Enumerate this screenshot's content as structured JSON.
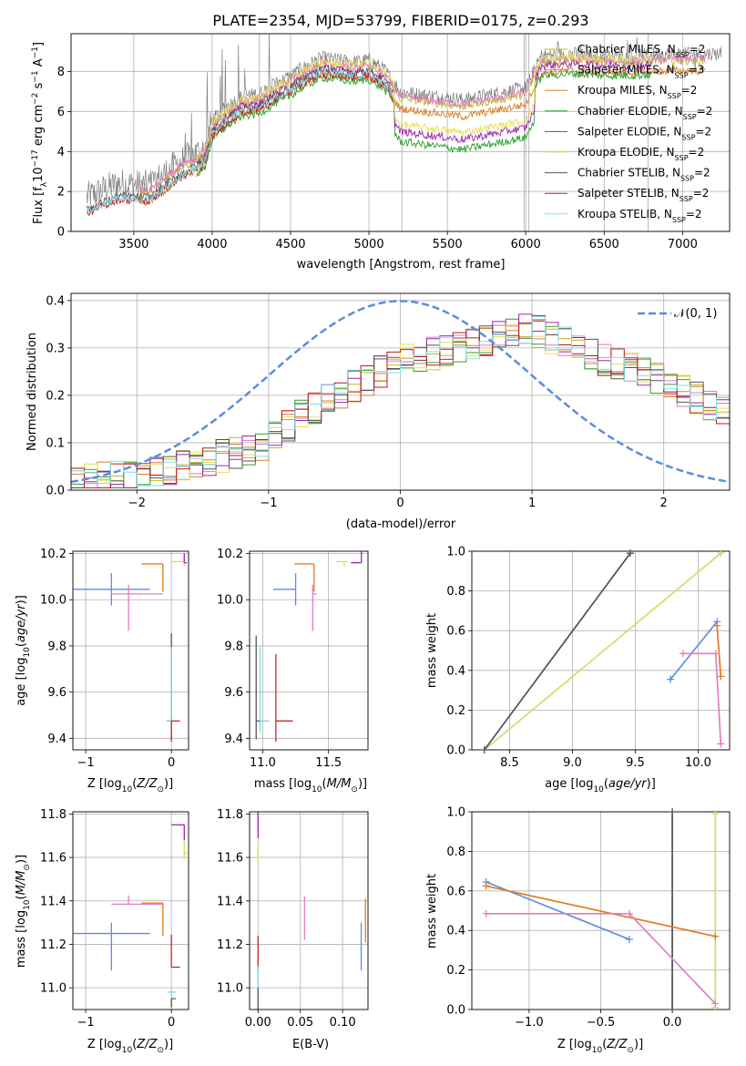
{
  "figure": {
    "title": "PLATE=2354, MJD=53799, FIBERID=0175, z=0.293"
  },
  "colors": {
    "Chabrier MILES": "#bcbd22",
    "Salpeter MILES": "#e377c2",
    "Kroupa MILES": "#d6812b",
    "Chabrier ELODIE": "#2ca02c",
    "Salpeter ELODIE": "#9c27b0",
    "Kroupa ELODIE": "#e8e05a",
    "Chabrier STELIB": "#555555",
    "Salpeter STELIB": "#b71c1c",
    "Kroupa STELIB": "#80deea",
    "data": "#808080",
    "gaussian": "#5b8ddb",
    "blue": "#5b8ddb",
    "orange": "#e07b20",
    "pink": "#e07fbf",
    "red": "#c62828",
    "grey": "#555555",
    "cyan": "#7fd6e0",
    "lime": "#c8e06e",
    "purple": "#9c27b0"
  },
  "chart_data": [
    {
      "id": "spectrum",
      "type": "line",
      "xlabel": "wavelength [Angstrom, rest frame]",
      "ylabel": "Flux [fλ10⁻¹⁷ erg cm⁻² s⁻¹ A⁻¹]",
      "xlim": [
        3100,
        7300
      ],
      "ylim": [
        0,
        9.9
      ],
      "xticks": [
        "3500",
        "4000",
        "4500",
        "5000",
        "5500",
        "6000",
        "6500",
        "7000"
      ],
      "yticks": [
        "0",
        "2",
        "4",
        "6",
        "8"
      ],
      "legend_position": "top-right",
      "legend": [
        "Chabrier MILES, N_SSP=2",
        "Salpeter MILES, N_SSP=3",
        "Kroupa MILES, N_SSP=2",
        "Chabrier ELODIE, N_SSP=2",
        "Salpeter ELODIE, N_SSP=2",
        "Kroupa ELODIE, N_SSP=2",
        "Chabrier STELIB, N_SSP=2",
        "Salpeter STELIB, N_SSP=2",
        "Kroupa STELIB, N_SSP=2"
      ],
      "legend_labels": {
        "Chabrier MILES": "Chabrier MILES, N",
        "Salpeter MILES": "Salpeter MILES, N",
        "Kroupa MILES": "Kroupa MILES, N",
        "Chabrier ELODIE": "Chabrier ELODIE, N",
        "Salpeter ELODIE": "Salpeter ELODIE, N",
        "Kroupa ELODIE": "Kroupa ELODIE, N",
        "Chabrier STELIB": "Chabrier STELIB, N",
        "Salpeter STELIB": "Salpeter STELIB, N",
        "Kroupa STELIB": "Kroupa STELIB, N"
      },
      "legend_nssp": {
        "Chabrier MILES": "2",
        "Salpeter MILES": "3",
        "Kroupa MILES": "2",
        "Chabrier ELODIE": "2",
        "Salpeter ELODIE": "2",
        "Kroupa ELODIE": "2",
        "Chabrier STELIB": "2",
        "Salpeter STELIB": "2",
        "Kroupa STELIB": "2"
      },
      "continuum": {
        "x": [
          3200,
          3400,
          3600,
          3800,
          3950,
          4000,
          4100,
          4200,
          4300,
          4400,
          4500,
          4600,
          4700,
          4800,
          4900,
          5000,
          5100,
          5200,
          5400,
          5600,
          5800,
          6000,
          6100,
          6300,
          6500,
          6700,
          6900,
          7100
        ],
        "y": [
          1.7,
          2.4,
          2.3,
          3.5,
          4.1,
          5.6,
          6.3,
          6.8,
          6.9,
          7.4,
          7.8,
          8.3,
          8.7,
          8.6,
          8.5,
          8.6,
          8.1,
          7.0,
          6.8,
          6.6,
          6.9,
          7.2,
          8.8,
          8.9,
          8.8,
          8.8,
          8.9,
          8.9
        ]
      },
      "model_x_ranges": {
        "MILES": [
          3540,
          7150
        ],
        "ELODIE": [
          3900,
          6800
        ],
        "STELIB": [
          3200,
          5150
        ]
      }
    },
    {
      "id": "residuals",
      "type": "histogram",
      "xlabel": "(data-model)/error",
      "ylabel": "Normed distribution",
      "xlim": [
        -2.5,
        2.5
      ],
      "ylim": [
        0,
        0.415
      ],
      "xticks": [
        "−2",
        "−1",
        "0",
        "1",
        "2"
      ],
      "yticks": [
        "0.0",
        "0.1",
        "0.2",
        "0.3",
        "0.4"
      ],
      "legend_position": "top-right",
      "gaussian_label": "𝒩(0, 1)",
      "bin_width": 0.1,
      "envelope": {
        "x": [
          -2.5,
          -2.0,
          -1.5,
          -1.0,
          -0.8,
          -0.5,
          -0.2,
          0.0,
          0.3,
          0.7,
          1.0,
          1.5,
          2.0,
          2.5
        ],
        "y": [
          0.02,
          0.03,
          0.06,
          0.1,
          0.15,
          0.2,
          0.24,
          0.28,
          0.29,
          0.32,
          0.34,
          0.28,
          0.23,
          0.16
        ]
      }
    },
    {
      "id": "age-vs-Z",
      "type": "errorbar",
      "xlabel": "Z [log10(Z/Z⊙)]",
      "ylabel": "age  [log10(age/yr)]",
      "xlim": [
        -1.15,
        0.2
      ],
      "ylim": [
        9.35,
        10.21
      ],
      "xticks": [
        "−1",
        "0"
      ],
      "yticks": [
        "9.4",
        "9.6",
        "9.8",
        "10.0",
        "10.2"
      ],
      "points": [
        {
          "c": "blue",
          "x": -0.7,
          "y": 10.045,
          "xe": [
            0.45,
            0.45
          ],
          "ye": [
            0.07,
            0.07
          ]
        },
        {
          "c": "pink",
          "x": -0.5,
          "y": 10.025,
          "xe": [
            0.2,
            0.4
          ],
          "ye": [
            0.16,
            0.04
          ]
        },
        {
          "c": "orange",
          "x": -0.1,
          "y": 10.155,
          "xe": [
            0.25,
            0.0
          ],
          "ye": [
            0.12,
            0.0
          ]
        },
        {
          "c": "lime",
          "x": 0.15,
          "y": 10.165,
          "xe": [
            0.15,
            0.0
          ],
          "ye": [
            0.02,
            0.01
          ]
        },
        {
          "c": "purple",
          "x": 0.15,
          "y": 10.16,
          "xe": [
            0.0,
            0.03
          ],
          "ye": [
            0.0,
            0.04
          ]
        },
        {
          "c": "grey",
          "x": 0.0,
          "y": 9.475,
          "xe": [
            0.05,
            0.0
          ],
          "ye": [
            0.08,
            0.38
          ]
        },
        {
          "c": "cyan",
          "x": 0.0,
          "y": 9.475,
          "xe": [
            0.06,
            0.02
          ],
          "ye": [
            0.05,
            0.32
          ]
        },
        {
          "c": "red",
          "x": 0.0,
          "y": 9.475,
          "xe": [
            0.0,
            0.1
          ],
          "ye": [
            0.09,
            0.0
          ]
        }
      ]
    },
    {
      "id": "age-vs-mass",
      "type": "errorbar",
      "xlabel": "mass [log10(M/M⊙)]",
      "ylabel": "",
      "xlim": [
        10.9,
        11.8
      ],
      "ylim": [
        9.35,
        10.21
      ],
      "xticks": [
        "11.0",
        "11.5"
      ],
      "yticks": [
        "9.4",
        "9.6",
        "9.8",
        "10.0",
        "10.2"
      ],
      "points": [
        {
          "c": "blue",
          "x": 11.25,
          "y": 10.045,
          "xe": [
            0.17,
            0.0
          ],
          "ye": [
            0.07,
            0.07
          ]
        },
        {
          "c": "pink",
          "x": 11.38,
          "y": 10.025,
          "xe": [
            0.0,
            0.03
          ],
          "ye": [
            0.16,
            0.04
          ]
        },
        {
          "c": "orange",
          "x": 11.39,
          "y": 10.155,
          "xe": [
            0.15,
            0.0
          ],
          "ye": [
            0.12,
            0.0
          ]
        },
        {
          "c": "lime",
          "x": 11.62,
          "y": 10.165,
          "xe": [
            0.06,
            0.03
          ],
          "ye": [
            0.02,
            0.0
          ]
        },
        {
          "c": "purple",
          "x": 11.75,
          "y": 10.16,
          "xe": [
            0.08,
            0.0
          ],
          "ye": [
            0.0,
            0.06
          ]
        },
        {
          "c": "grey",
          "x": 10.95,
          "y": 9.475,
          "xe": [
            0.0,
            0.05
          ],
          "ye": [
            0.08,
            0.37
          ]
        },
        {
          "c": "cyan",
          "x": 10.98,
          "y": 9.475,
          "xe": [
            0.0,
            0.07
          ],
          "ye": [
            0.05,
            0.32
          ]
        },
        {
          "c": "red",
          "x": 11.1,
          "y": 9.475,
          "xe": [
            0.0,
            0.13
          ],
          "ye": [
            0.09,
            0.29
          ]
        }
      ]
    },
    {
      "id": "weight-vs-age",
      "type": "line",
      "xlabel": "age  [log10(age/yr)]",
      "ylabel": "mass weight",
      "xlim": [
        8.2,
        10.25
      ],
      "ylim": [
        0.0,
        1.0
      ],
      "xticks": [
        "8.5",
        "9.0",
        "9.5",
        "10.0"
      ],
      "yticks": [
        "0.0",
        "0.2",
        "0.4",
        "0.6",
        "0.8",
        "1.0"
      ],
      "series": [
        {
          "c": "lime",
          "x": [
            8.3,
            10.18
          ],
          "y": [
            0.0,
            0.99
          ]
        },
        {
          "c": "cyan",
          "x": [
            8.3,
            9.46
          ],
          "y": [
            0.0,
            0.99
          ]
        },
        {
          "c": "grey",
          "x": [
            8.3,
            9.46
          ],
          "y": [
            0.0,
            0.99
          ]
        },
        {
          "c": "blue",
          "x": [
            9.78,
            10.15
          ],
          "y": [
            0.355,
            0.645
          ]
        },
        {
          "c": "pink",
          "x": [
            9.88,
            10.14,
            10.18
          ],
          "y": [
            0.485,
            0.485,
            0.03
          ]
        },
        {
          "c": "orange",
          "x": [
            10.15,
            10.18
          ],
          "y": [
            0.625,
            0.37
          ]
        }
      ]
    },
    {
      "id": "mass-vs-Z",
      "type": "errorbar",
      "xlabel": "Z [log10(Z/Z⊙)]",
      "ylabel": "mass [log10(M/M⊙)]",
      "xlim": [
        -1.15,
        0.2
      ],
      "ylim": [
        10.9,
        11.81
      ],
      "xticks": [
        "−1",
        "0"
      ],
      "yticks": [
        "11.0",
        "11.2",
        "11.4",
        "11.6",
        "11.8"
      ],
      "points": [
        {
          "c": "blue",
          "x": -0.7,
          "y": 11.25,
          "xe": [
            0.45,
            0.45
          ],
          "ye": [
            0.17,
            0.05
          ]
        },
        {
          "c": "pink",
          "x": -0.5,
          "y": 11.385,
          "xe": [
            0.2,
            0.4
          ],
          "ye": [
            0.0,
            0.04
          ]
        },
        {
          "c": "orange",
          "x": -0.1,
          "y": 11.39,
          "xe": [
            0.25,
            0.0
          ],
          "ye": [
            0.15,
            0.0
          ]
        },
        {
          "c": "purple",
          "x": 0.15,
          "y": 11.75,
          "xe": [
            0.15,
            0.0
          ],
          "ye": [
            0.08,
            0.0
          ]
        },
        {
          "c": "lime",
          "x": 0.15,
          "y": 11.62,
          "xe": [
            0.0,
            0.03
          ],
          "ye": [
            0.03,
            0.06
          ]
        },
        {
          "c": "red",
          "x": 0.0,
          "y": 11.095,
          "xe": [
            0.0,
            0.1
          ],
          "ye": [
            0.0,
            0.15
          ]
        },
        {
          "c": "cyan",
          "x": 0.0,
          "y": 10.98,
          "xe": [
            0.05,
            0.05
          ],
          "ye": [
            0.07,
            0.0
          ]
        },
        {
          "c": "grey",
          "x": 0.0,
          "y": 10.95,
          "xe": [
            0.0,
            0.05
          ],
          "ye": [
            0.04,
            0.0
          ]
        }
      ]
    },
    {
      "id": "mass-vs-EBV",
      "type": "errorbar",
      "xlabel": "E(B-V)",
      "ylabel": "",
      "xlim": [
        -0.01,
        0.13
      ],
      "ylim": [
        10.9,
        11.81
      ],
      "xticks": [
        "0.00",
        "0.05",
        "0.10"
      ],
      "yticks": [
        "11.0",
        "11.2",
        "11.4",
        "11.6",
        "11.8"
      ],
      "points": [
        {
          "c": "purple",
          "x": 0.0,
          "y": 11.75,
          "xe": [
            0,
            0
          ],
          "ye": [
            0.06,
            0.06
          ]
        },
        {
          "c": "lime",
          "x": 0.0,
          "y": 11.62,
          "xe": [
            0,
            0
          ],
          "ye": [
            0.04,
            0.04
          ]
        },
        {
          "c": "pink",
          "x": 0.055,
          "y": 11.32,
          "xe": [
            0,
            0
          ],
          "ye": [
            0.1,
            0.1
          ]
        },
        {
          "c": "orange",
          "x": 0.127,
          "y": 11.31,
          "xe": [
            0,
            0
          ],
          "ye": [
            0.1,
            0.1
          ]
        },
        {
          "c": "blue",
          "x": 0.122,
          "y": 11.19,
          "xe": [
            0,
            0
          ],
          "ye": [
            0.11,
            0.11
          ]
        },
        {
          "c": "red",
          "x": 0.0,
          "y": 11.16,
          "xe": [
            0,
            0
          ],
          "ye": [
            0.08,
            0.08
          ]
        },
        {
          "c": "cyan",
          "x": 0.0,
          "y": 11.0,
          "xe": [
            0,
            0
          ],
          "ye": [
            0.12,
            0.1
          ]
        },
        {
          "c": "grey",
          "x": 0.0,
          "y": 10.95,
          "xe": [
            0,
            0
          ],
          "ye": [
            0.05,
            0.05
          ]
        }
      ]
    },
    {
      "id": "weight-vs-Z",
      "type": "line",
      "xlabel": "Z [log10(Z/Z⊙)]",
      "ylabel": "mass weight",
      "xlim": [
        -1.4,
        0.4
      ],
      "ylim": [
        0.0,
        1.0
      ],
      "xticks": [
        "−1.0",
        "−0.5",
        "0.0"
      ],
      "yticks": [
        "0.0",
        "0.2",
        "0.4",
        "0.6",
        "0.8",
        "1.0"
      ],
      "series": [
        {
          "c": "cyan",
          "x": [
            0.0,
            0.0
          ],
          "y": [
            0.0,
            1.0
          ]
        },
        {
          "c": "grey",
          "x": [
            0.0,
            0.0
          ],
          "y": [
            0.0,
            1.0
          ]
        },
        {
          "c": "lime",
          "x": [
            0.3,
            0.3
          ],
          "y": [
            0.01,
            0.99
          ]
        },
        {
          "c": "blue",
          "x": [
            -1.3,
            -0.3
          ],
          "y": [
            0.645,
            0.355
          ]
        },
        {
          "c": "orange",
          "x": [
            -1.3,
            0.3
          ],
          "y": [
            0.625,
            0.37
          ]
        },
        {
          "c": "pink",
          "x": [
            -1.3,
            -0.3,
            0.3
          ],
          "y": [
            0.485,
            0.485,
            0.03
          ]
        }
      ]
    }
  ]
}
